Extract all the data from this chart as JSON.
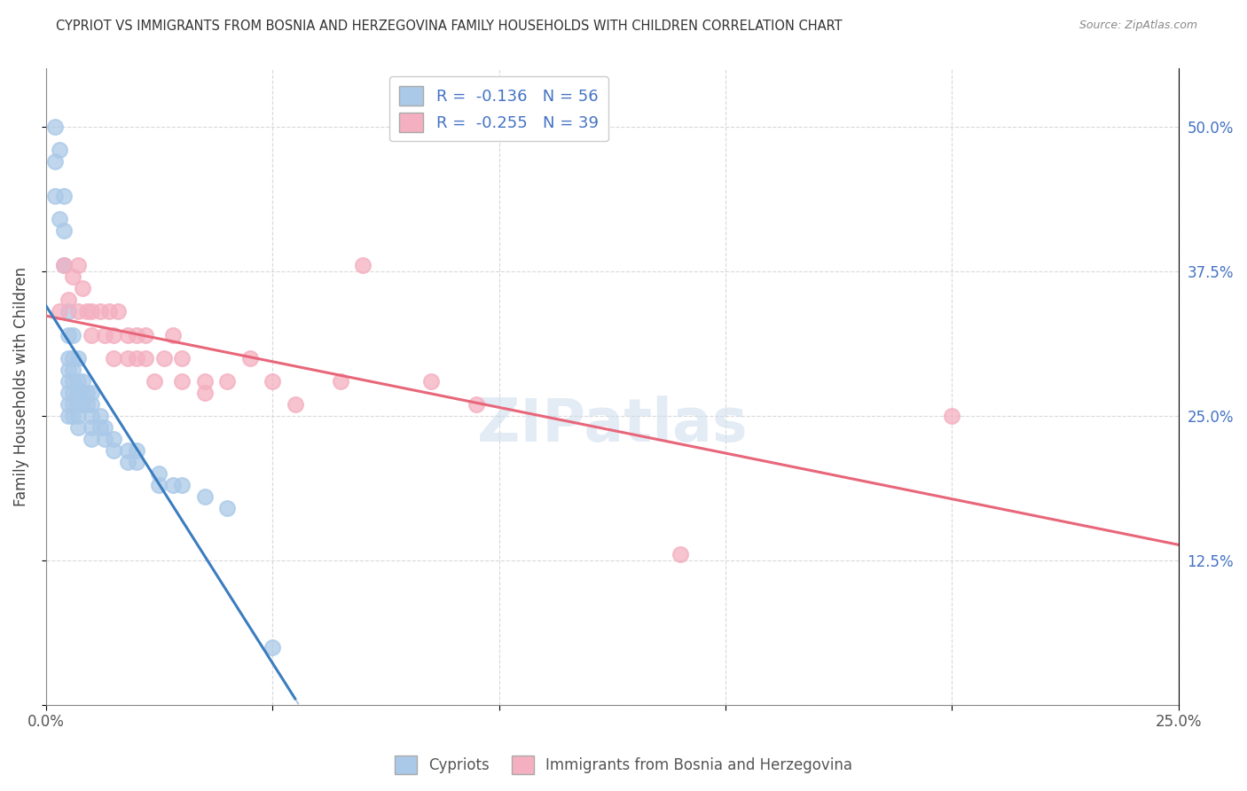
{
  "title": "CYPRIOT VS IMMIGRANTS FROM BOSNIA AND HERZEGOVINA FAMILY HOUSEHOLDS WITH CHILDREN CORRELATION CHART",
  "source": "Source: ZipAtlas.com",
  "ylabel": "Family Households with Children",
  "xlim": [
    0.0,
    0.25
  ],
  "ylim": [
    0.0,
    0.55
  ],
  "x_tick_positions": [
    0.0,
    0.05,
    0.1,
    0.15,
    0.2,
    0.25
  ],
  "x_tick_labels": [
    "0.0%",
    "",
    "",
    "",
    "",
    "25.0%"
  ],
  "y_tick_positions": [
    0.0,
    0.125,
    0.25,
    0.375,
    0.5
  ],
  "y_tick_labels_right": [
    "",
    "12.5%",
    "25.0%",
    "37.5%",
    "50.0%"
  ],
  "cypriot_R": -0.136,
  "cypriot_N": 56,
  "bosnia_R": -0.255,
  "bosnia_N": 39,
  "cypriot_color": "#aac9e8",
  "cypriot_line_color": "#3a7dbf",
  "bosnia_color": "#f4afc0",
  "bosnia_line_color": "#e8667a",
  "background_color": "#ffffff",
  "grid_color": "#d0d0d0",
  "cypriot_x": [
    0.002,
    0.002,
    0.002,
    0.003,
    0.003,
    0.004,
    0.004,
    0.004,
    0.005,
    0.005,
    0.005,
    0.005,
    0.005,
    0.005,
    0.005,
    0.005,
    0.006,
    0.006,
    0.006,
    0.006,
    0.006,
    0.006,
    0.006,
    0.007,
    0.007,
    0.007,
    0.007,
    0.007,
    0.007,
    0.008,
    0.008,
    0.008,
    0.009,
    0.009,
    0.01,
    0.01,
    0.01,
    0.01,
    0.01,
    0.012,
    0.012,
    0.013,
    0.013,
    0.015,
    0.015,
    0.018,
    0.018,
    0.02,
    0.02,
    0.025,
    0.025,
    0.028,
    0.03,
    0.035,
    0.04,
    0.05
  ],
  "cypriot_y": [
    0.5,
    0.47,
    0.44,
    0.48,
    0.42,
    0.44,
    0.41,
    0.38,
    0.34,
    0.32,
    0.3,
    0.29,
    0.28,
    0.27,
    0.26,
    0.25,
    0.32,
    0.3,
    0.29,
    0.28,
    0.27,
    0.26,
    0.25,
    0.3,
    0.28,
    0.27,
    0.26,
    0.25,
    0.24,
    0.28,
    0.27,
    0.26,
    0.27,
    0.26,
    0.27,
    0.26,
    0.25,
    0.24,
    0.23,
    0.25,
    0.24,
    0.24,
    0.23,
    0.23,
    0.22,
    0.22,
    0.21,
    0.22,
    0.21,
    0.2,
    0.19,
    0.19,
    0.19,
    0.18,
    0.17,
    0.05
  ],
  "bosnia_x": [
    0.003,
    0.004,
    0.005,
    0.006,
    0.007,
    0.007,
    0.008,
    0.009,
    0.01,
    0.01,
    0.012,
    0.013,
    0.014,
    0.015,
    0.015,
    0.016,
    0.018,
    0.018,
    0.02,
    0.02,
    0.022,
    0.022,
    0.024,
    0.026,
    0.028,
    0.03,
    0.03,
    0.035,
    0.035,
    0.04,
    0.045,
    0.05,
    0.055,
    0.065,
    0.07,
    0.085,
    0.095,
    0.14,
    0.2
  ],
  "bosnia_y": [
    0.34,
    0.38,
    0.35,
    0.37,
    0.38,
    0.34,
    0.36,
    0.34,
    0.34,
    0.32,
    0.34,
    0.32,
    0.34,
    0.32,
    0.3,
    0.34,
    0.32,
    0.3,
    0.32,
    0.3,
    0.32,
    0.3,
    0.28,
    0.3,
    0.32,
    0.3,
    0.28,
    0.28,
    0.27,
    0.28,
    0.3,
    0.28,
    0.26,
    0.28,
    0.38,
    0.28,
    0.26,
    0.13,
    0.25
  ]
}
